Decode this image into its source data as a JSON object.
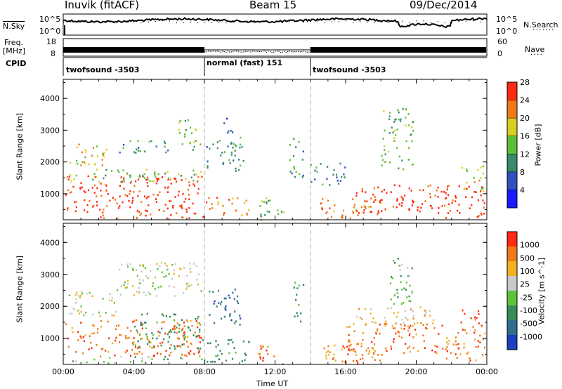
{
  "header": {
    "station": "Inuvik (fitACF)",
    "beam": "Beam 15",
    "date": "09/Dec/2014"
  },
  "top_panel": {
    "left_label": "N.Sky",
    "left_ticks": [
      "10^5",
      "10^0"
    ],
    "right_label": "N.Search",
    "right_ticks": [
      "10^5",
      "10^0"
    ]
  },
  "freq_panel": {
    "left_label_line1": "Freq.",
    "left_label_line2": "[MHz]",
    "left_ticks": [
      "18",
      "8"
    ],
    "right_label": "Nave",
    "right_ticks": [
      "60",
      "0"
    ]
  },
  "cpid": {
    "label": "CPID",
    "segments": [
      {
        "text": "twofsound -3503",
        "start_hour": 0,
        "end_hour": 8
      },
      {
        "text": "normal (fast) 151",
        "start_hour": 8,
        "end_hour": 14
      },
      {
        "text": "twofsound -3503",
        "start_hour": 14,
        "end_hour": 24
      }
    ]
  },
  "x_axis": {
    "label": "Time UT",
    "ticks": [
      "00:00",
      "04:00",
      "08:00",
      "12:00",
      "16:00",
      "20:00",
      "00:00"
    ]
  },
  "chart_data": [
    {
      "type": "heatmap",
      "panel": "power",
      "ylabel": "Slant Range [km]",
      "yticks": [
        "1000",
        "2000",
        "3000",
        "4000"
      ],
      "ylim": [
        180,
        4600
      ],
      "xlim_hours": [
        0,
        24
      ],
      "colorbar_label": "Power [dB]",
      "colorbar_ticks": [
        "4",
        "8",
        "12",
        "16",
        "20",
        "24",
        "28"
      ],
      "colorbar_colors": [
        "#1a1aff",
        "#3050c0",
        "#3a8a6a",
        "#5cbf3a",
        "#d8d020",
        "#f07818",
        "#ff2a10"
      ],
      "regions": [
        {
          "t0": 0.1,
          "t1": 7.9,
          "r0": 450,
          "r1": 1600,
          "level": 6
        },
        {
          "t0": 0.3,
          "t1": 7.8,
          "r0": 1400,
          "r1": 1800,
          "level": 3
        },
        {
          "t0": 0.2,
          "t1": 2.5,
          "r0": 1900,
          "r1": 2600,
          "level": 4
        },
        {
          "t0": 3.0,
          "t1": 6.0,
          "r0": 2300,
          "r1": 2700,
          "level": 2
        },
        {
          "t0": 6.5,
          "t1": 7.8,
          "r0": 2400,
          "r1": 3400,
          "level": 3
        },
        {
          "t0": 2.0,
          "t1": 8.0,
          "r0": 250,
          "r1": 450,
          "level": 6
        },
        {
          "t0": 8.0,
          "t1": 10.5,
          "r0": 300,
          "r1": 900,
          "level": 5
        },
        {
          "t0": 8.1,
          "t1": 10.2,
          "r0": 1700,
          "r1": 2800,
          "level": 2
        },
        {
          "t0": 9.0,
          "t1": 9.6,
          "r0": 2800,
          "r1": 3400,
          "level": 1
        },
        {
          "t0": 11.0,
          "t1": 12.5,
          "r0": 200,
          "r1": 900,
          "level": 3
        },
        {
          "t0": 12.8,
          "t1": 13.6,
          "r0": 1500,
          "r1": 2800,
          "level": 2
        },
        {
          "t0": 14.0,
          "t1": 16.0,
          "r0": 1300,
          "r1": 2000,
          "level": 2
        },
        {
          "t0": 14.5,
          "t1": 18.0,
          "r0": 250,
          "r1": 900,
          "level": 5
        },
        {
          "t0": 16.5,
          "t1": 21.5,
          "r0": 400,
          "r1": 1300,
          "level": 6
        },
        {
          "t0": 18.0,
          "t1": 19.8,
          "r0": 1800,
          "r1": 3700,
          "level": 3
        },
        {
          "t0": 21.5,
          "t1": 23.9,
          "r0": 250,
          "r1": 1300,
          "level": 6
        },
        {
          "t0": 22.5,
          "t1": 23.8,
          "r0": 1100,
          "r1": 1900,
          "level": 4
        }
      ]
    },
    {
      "type": "heatmap",
      "panel": "velocity",
      "ylabel": "Slant Range [km]",
      "yticks": [
        "1000",
        "2000",
        "3000",
        "4000"
      ],
      "ylim": [
        180,
        4600
      ],
      "xlim_hours": [
        0,
        24
      ],
      "colorbar_label": "Velocity [m s^-1]",
      "colorbar_ticks": [
        "1000",
        "500",
        "100",
        "25",
        "-25",
        "-100",
        "-500",
        "-1000"
      ],
      "colorbar_colors": [
        "#1a3fc0",
        "#2e6f8f",
        "#3a8a5a",
        "#5cc43a",
        "#c8c8c8",
        "#f0b020",
        "#f07818",
        "#ff2a10"
      ],
      "regions": [
        {
          "t0": 0.1,
          "t1": 7.9,
          "r0": 450,
          "r1": 1600,
          "level": 6
        },
        {
          "t0": 4.0,
          "t1": 7.9,
          "r0": 700,
          "r1": 1800,
          "level": 2
        },
        {
          "t0": 0.2,
          "t1": 3.0,
          "r0": 1700,
          "r1": 2500,
          "level": 4
        },
        {
          "t0": 3.0,
          "t1": 7.8,
          "r0": 2300,
          "r1": 3400,
          "level": 4
        },
        {
          "t0": 0.5,
          "t1": 8.0,
          "r0": 250,
          "r1": 450,
          "level": 3
        },
        {
          "t0": 8.0,
          "t1": 10.5,
          "r0": 250,
          "r1": 1000,
          "level": 2
        },
        {
          "t0": 8.2,
          "t1": 10.0,
          "r0": 1400,
          "r1": 2600,
          "level": 1
        },
        {
          "t0": 11.0,
          "t1": 12.5,
          "r0": 200,
          "r1": 800,
          "level": 6
        },
        {
          "t0": 13.0,
          "t1": 13.6,
          "r0": 1500,
          "r1": 2800,
          "level": 2
        },
        {
          "t0": 14.5,
          "t1": 18.0,
          "r0": 250,
          "r1": 900,
          "level": 6
        },
        {
          "t0": 16.0,
          "t1": 21.5,
          "r0": 500,
          "r1": 1500,
          "level": 6
        },
        {
          "t0": 16.5,
          "t1": 21.0,
          "r0": 1400,
          "r1": 2000,
          "level": 5
        },
        {
          "t0": 18.5,
          "t1": 19.8,
          "r0": 2000,
          "r1": 3600,
          "level": 3
        },
        {
          "t0": 21.5,
          "t1": 23.9,
          "r0": 300,
          "r1": 1300,
          "level": 6
        },
        {
          "t0": 22.5,
          "t1": 23.8,
          "r0": 1200,
          "r1": 1900,
          "level": 7
        }
      ]
    }
  ]
}
